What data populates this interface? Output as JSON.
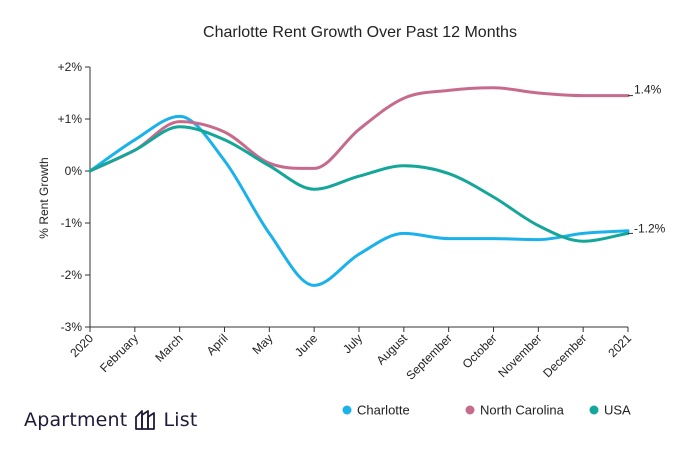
{
  "chart_data": {
    "type": "line",
    "title": "Charlotte Rent Growth Over Past 12 Months",
    "ylabel": "% Rent Growth",
    "xlabel": "",
    "categories": [
      "2020",
      "February",
      "March",
      "April",
      "May",
      "June",
      "July",
      "August",
      "September",
      "October",
      "November",
      "December",
      "2021"
    ],
    "yticks": [
      "+2%",
      "+1%",
      "0%",
      "-1%",
      "-2%",
      "-3%"
    ],
    "ytick_values": [
      2,
      1,
      0,
      -1,
      -2,
      -3
    ],
    "ylim": [
      -3,
      2
    ],
    "grid": false,
    "legend_position": "bottom-right",
    "series": [
      {
        "name": "Charlotte",
        "color": "#1bb1ea",
        "values": [
          0.0,
          0.6,
          1.05,
          0.2,
          -1.2,
          -2.2,
          -1.6,
          -1.2,
          -1.3,
          -1.3,
          -1.32,
          -1.2,
          -1.15
        ]
      },
      {
        "name": "North Carolina",
        "color": "#c76b8d",
        "values": [
          0.0,
          0.4,
          0.95,
          0.75,
          0.15,
          0.05,
          0.8,
          1.4,
          1.55,
          1.6,
          1.5,
          1.45,
          1.45
        ]
      },
      {
        "name": "USA",
        "color": "#14a698",
        "values": [
          0.0,
          0.4,
          0.85,
          0.6,
          0.1,
          -0.35,
          -0.1,
          0.1,
          -0.05,
          -0.5,
          -1.05,
          -1.35,
          -1.2
        ]
      }
    ],
    "end_labels": [
      {
        "series": "North Carolina",
        "text": "1.4%"
      },
      {
        "series": "USA",
        "text": "-1.2%"
      }
    ]
  },
  "brand": {
    "left": "Apartment",
    "right": "List"
  }
}
